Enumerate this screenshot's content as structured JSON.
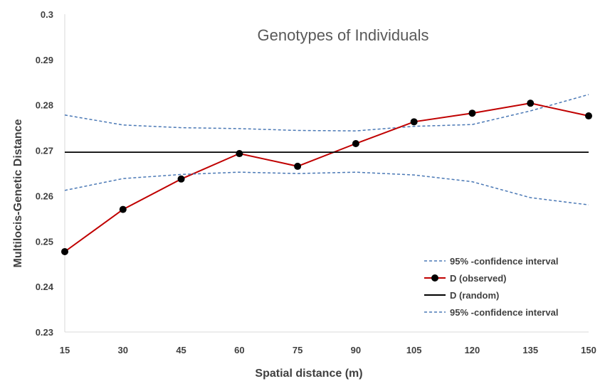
{
  "chart_data": {
    "type": "line",
    "title": "Genotypes of Individuals",
    "xlabel": "Spatial distance (m)",
    "ylabel": "Multilocis-Genetic Distance",
    "x": [
      15,
      30,
      45,
      60,
      75,
      90,
      105,
      120,
      135,
      150
    ],
    "x_tick_labels": [
      "15",
      "30",
      "45",
      "60",
      "75",
      "90",
      "105",
      "120",
      "135",
      "150"
    ],
    "ylim": [
      0.23,
      0.3
    ],
    "y_ticks": [
      0.23,
      0.24,
      0.25,
      0.26,
      0.27,
      0.28,
      0.29,
      0.3
    ],
    "y_tick_labels": [
      "0.23",
      "0.24",
      "0.25",
      "0.26",
      "0.27",
      "0.28",
      "0.29",
      "0.3"
    ],
    "grid": false,
    "legend_position": "bottom-right",
    "series": [
      {
        "name": "95% -confidence interval",
        "style": "dashed",
        "color": "#4a78b5",
        "values": [
          0.2778,
          0.2756,
          0.275,
          0.2748,
          0.2744,
          0.2743,
          0.2753,
          0.2757,
          0.2787,
          0.2823
        ]
      },
      {
        "name": "D (observed)",
        "style": "solid-markers",
        "color": "#c00000",
        "marker_color": "#000000",
        "values": [
          0.2477,
          0.257,
          0.2637,
          0.2693,
          0.2665,
          0.2715,
          0.2763,
          0.2782,
          0.2804,
          0.2776
        ]
      },
      {
        "name": "D (random)",
        "style": "solid",
        "color": "#000000",
        "values": [
          0.2696,
          0.2696,
          0.2696,
          0.2696,
          0.2696,
          0.2696,
          0.2696,
          0.2696,
          0.2696,
          0.2696
        ]
      },
      {
        "name": "95% -confidence interval",
        "style": "dashed",
        "color": "#4a78b5",
        "values": [
          0.2612,
          0.2638,
          0.2647,
          0.2652,
          0.2649,
          0.2652,
          0.2646,
          0.2631,
          0.2596,
          0.258
        ]
      }
    ]
  }
}
